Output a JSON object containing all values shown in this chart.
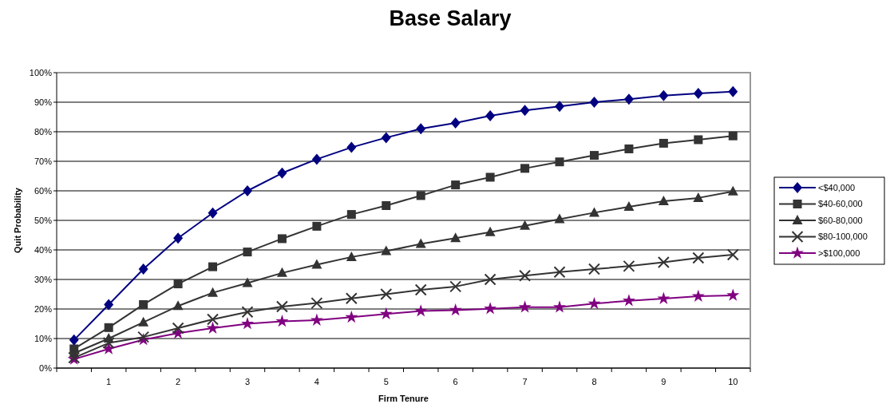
{
  "chart_data": {
    "type": "line",
    "title": "Base Salary",
    "xlabel": "Firm Tenure",
    "ylabel": "Quit Probability",
    "categories": [
      null,
      "1",
      null,
      "2",
      null,
      "3",
      null,
      "4",
      null,
      "5",
      null,
      "6",
      null,
      "7",
      null,
      "8",
      null,
      "9",
      null,
      "10"
    ],
    "series": [
      {
        "name": "<$40,000",
        "color": "#000080",
        "marker": "diamond",
        "values": [
          9.5,
          21.5,
          33.5,
          44,
          52.5,
          60,
          66,
          70.7,
          74.7,
          78,
          81,
          83,
          85.4,
          87.2,
          88.6,
          90,
          91,
          92.2,
          93,
          93.6
        ]
      },
      {
        "name": "$40-60,000",
        "color": "#333333",
        "marker": "square",
        "values": [
          6.5,
          13.7,
          21.5,
          28.5,
          34.3,
          39.3,
          43.8,
          48,
          52,
          55,
          58.4,
          62,
          64.6,
          67.6,
          69.8,
          72,
          74.2,
          76.1,
          77.3,
          78.6
        ]
      },
      {
        "name": "$60-80,000",
        "color": "#333333",
        "marker": "triangle",
        "values": [
          5,
          10,
          15.5,
          21,
          25.5,
          28.8,
          32.2,
          35,
          37.6,
          39.6,
          42,
          44,
          46,
          48.2,
          50.4,
          52.6,
          54.6,
          56.5,
          57.6,
          59.8
        ]
      },
      {
        "name": "$80-100,000",
        "color": "#333333",
        "marker": "cross",
        "values": [
          3.5,
          8.5,
          10.5,
          13.5,
          16.5,
          19,
          20.8,
          22,
          23.6,
          25,
          26.5,
          27.6,
          30,
          31.3,
          32.5,
          33.5,
          34.5,
          35.8,
          37.3,
          38.4
        ]
      },
      {
        "name": ">$100,000",
        "color": "#800080",
        "marker": "star",
        "values": [
          3,
          6.5,
          9.6,
          11.8,
          13.5,
          15,
          15.8,
          16.2,
          17.2,
          18.3,
          19.3,
          19.6,
          20.1,
          20.6,
          20.6,
          21.8,
          22.8,
          23.5,
          24.3,
          24.6
        ]
      }
    ],
    "ylim": [
      0,
      100
    ],
    "yticks": [
      {
        "value": 0,
        "label": "0%"
      },
      {
        "value": 10,
        "label": "10%"
      },
      {
        "value": 20,
        "label": "20%"
      },
      {
        "value": 30,
        "label": "30%"
      },
      {
        "value": 40,
        "label": "40%"
      },
      {
        "value": 50,
        "label": "50%"
      },
      {
        "value": 60,
        "label": "60%"
      },
      {
        "value": 70,
        "label": "70%"
      },
      {
        "value": 80,
        "label": "80%"
      },
      {
        "value": 90,
        "label": "90%"
      },
      {
        "value": 100,
        "label": "100%"
      }
    ],
    "grid": "y",
    "legend": "right",
    "line_style": "solid"
  }
}
